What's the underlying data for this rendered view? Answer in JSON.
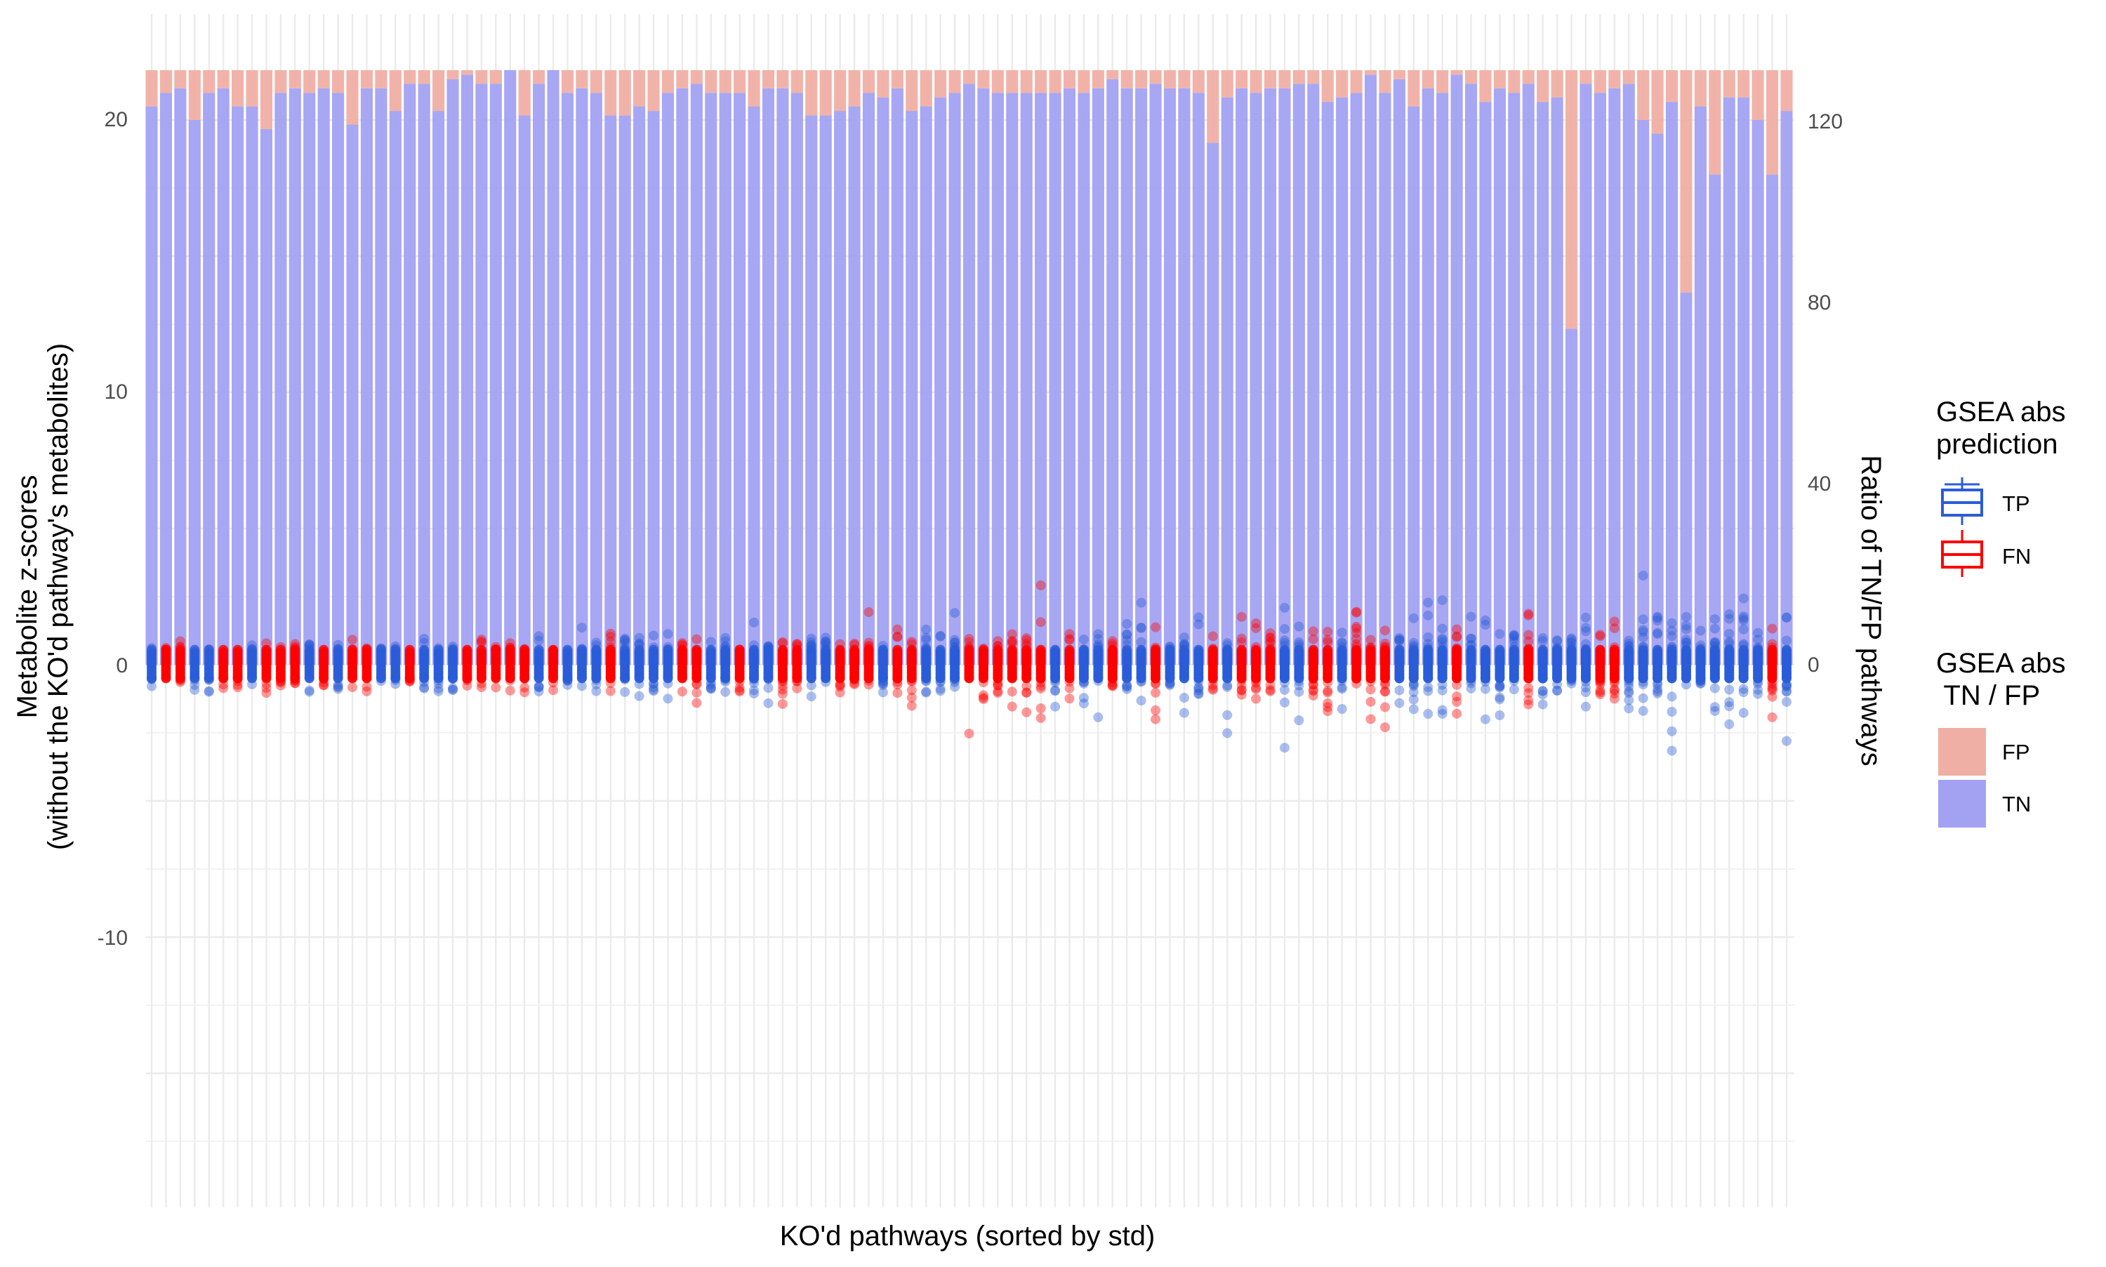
{
  "chart_data": {
    "type": "bar",
    "description_note": "",
    "xlabel": "KO'd pathways (sorted by std)",
    "ylabel_left": "Metabolite z-scores\n(without the KO'd pathway's metabolites)",
    "ylabel_right": "Ratio of TN/FP pathways",
    "yticks_left": [
      "20",
      "10",
      "0",
      "-10"
    ],
    "yticks_right": [
      "120",
      "80",
      "40",
      "0"
    ],
    "ylim_left": [
      -20,
      22
    ],
    "ylim_right": [
      -130,
      132
    ],
    "grid": true,
    "legend_position": "right",
    "legend": {
      "prediction": {
        "title": "GSEA abs\nprediction",
        "items": [
          {
            "label": "TP",
            "color": "#2B5CD8"
          },
          {
            "label": "FN",
            "color": "#FF0000"
          }
        ]
      },
      "tnfp": {
        "title": "GSEA abs\n TN / FP",
        "items": [
          {
            "label": "FP",
            "color": "#F0AFA4"
          },
          {
            "label": "TN",
            "color": "#A3A2F2"
          }
        ]
      }
    },
    "colors": {
      "TP": "#2B5CD8",
      "FN": "#FF0000",
      "FP_bar": "#F0AFA4",
      "TN_bar": "#A3A2F2",
      "grid": "#EBEBEB"
    },
    "n_pathways": 115,
    "bar_total": 131,
    "tn_values": [
      123,
      126,
      127,
      120,
      126,
      127,
      123,
      123,
      118,
      126,
      127,
      126,
      127,
      126,
      119,
      127,
      127,
      122,
      128,
      128,
      122,
      129,
      130,
      128,
      128,
      131,
      121,
      128,
      131,
      126,
      127,
      126,
      121,
      121,
      123,
      122,
      126,
      127,
      128,
      126,
      126,
      126,
      123,
      127,
      127,
      126,
      121,
      121,
      122,
      123,
      126,
      125,
      127,
      122,
      123,
      125,
      126,
      128,
      127,
      126,
      126,
      126,
      126,
      126,
      127,
      126,
      127,
      129,
      127,
      127,
      128,
      127,
      127,
      126,
      115,
      125,
      127,
      126,
      127,
      127,
      128,
      128,
      124,
      125,
      126,
      130,
      126,
      129,
      123,
      127,
      126,
      130,
      128,
      124,
      127,
      126,
      128,
      124,
      125,
      74,
      128,
      126,
      127,
      128,
      120,
      117,
      124,
      82,
      123,
      108,
      125,
      125,
      120,
      108,
      122
    ],
    "tp_fn_pattern": [
      "TP",
      "FN",
      "FN",
      "TP",
      "TP",
      "FN",
      "FN",
      "TP",
      "FN",
      "FN",
      "FN",
      "TP",
      "FN",
      "TP",
      "FN",
      "FN",
      "TP",
      "TP",
      "FN",
      "TP",
      "TP",
      "TP",
      "FN",
      "FN",
      "FN",
      "FN",
      "FN",
      "TP",
      "FN",
      "TP",
      "TP",
      "TP",
      "FN",
      "TP",
      "TP",
      "TP",
      "TP",
      "FN",
      "FN",
      "TP",
      "TP",
      "FN",
      "TP",
      "TP",
      "FN",
      "FN",
      "TP",
      "TP",
      "FN",
      "FN",
      "FN",
      "TP",
      "FN",
      "FN",
      "TP",
      "TP",
      "TP",
      "FN",
      "FN",
      "FN",
      "FN",
      "FN",
      "FN",
      "TP",
      "FN",
      "TP",
      "TP",
      "FN",
      "TP",
      "TP",
      "FN",
      "TP",
      "TP",
      "TP",
      "FN",
      "TP",
      "FN",
      "FN",
      "FN",
      "TP",
      "TP",
      "FN",
      "FN",
      "TP",
      "FN",
      "FN",
      "FN",
      "TP",
      "TP",
      "TP",
      "TP",
      "FN",
      "TP",
      "TP",
      "TP",
      "TP",
      "FN",
      "TP",
      "TP",
      "TP",
      "TP",
      "FN",
      "FN",
      "TP",
      "TP",
      "TP",
      "TP",
      "TP",
      "TP",
      "TP",
      "TP",
      "TP",
      "TP",
      "FN",
      "TP"
    ]
  }
}
